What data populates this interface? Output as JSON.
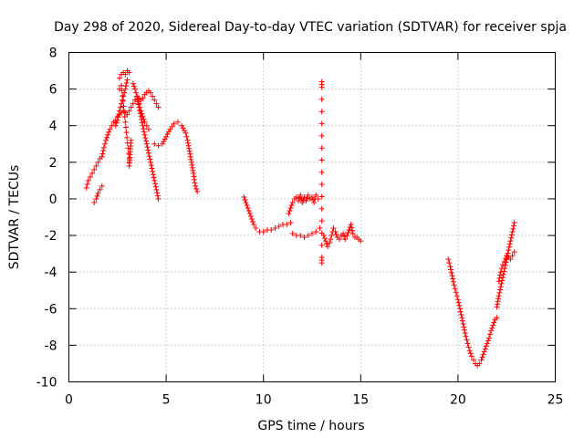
{
  "chart_data": {
    "type": "scatter",
    "title": "Day 298 of 2020, Sidereal Day-to-day VTEC variation (SDTVAR) for receiver spja",
    "xlabel": "GPS time / hours",
    "ylabel": "SDTVAR / TECUs",
    "xlim": [
      0,
      25
    ],
    "ylim": [
      -10,
      8
    ],
    "xticks": [
      0,
      5,
      10,
      15,
      20,
      25
    ],
    "yticks": [
      -10,
      -8,
      -6,
      -4,
      -2,
      0,
      2,
      4,
      6,
      8
    ],
    "grid": true,
    "marker": "plus",
    "color": "#ff0000",
    "series": [
      {
        "x": [
          0.9,
          1.0,
          1.1,
          1.2,
          1.3,
          1.4,
          1.5,
          1.6,
          1.7,
          1.8,
          1.9,
          2.0,
          2.1,
          2.2,
          2.3,
          2.4,
          2.5,
          2.6,
          2.7,
          2.8,
          2.9,
          3.0,
          3.1,
          3.2,
          3.3,
          3.4,
          3.5,
          3.6,
          3.7,
          3.8,
          3.9,
          4.0,
          4.1,
          4.2,
          4.3,
          4.4,
          4.5,
          4.6
        ],
        "y": [
          0.6,
          1.0,
          1.2,
          1.4,
          1.6,
          1.8,
          2.0,
          2.2,
          2.3,
          2.8,
          3.2,
          3.5,
          3.8,
          4.0,
          4.2,
          4.3,
          4.5,
          4.6,
          4.7,
          4.8,
          4.7,
          4.6,
          4.8,
          5.0,
          5.2,
          5.4,
          5.6,
          5.5,
          5.4,
          5.5,
          5.7,
          5.8,
          5.9,
          5.8,
          5.6,
          5.4,
          5.2,
          5.0
        ]
      },
      {
        "x": [
          1.3,
          1.4,
          1.5,
          1.6,
          1.7
        ],
        "y": [
          -0.2,
          0.0,
          0.3,
          0.5,
          0.7
        ]
      },
      {
        "x": [
          2.4,
          2.5,
          2.6,
          2.7,
          2.8,
          2.9,
          3.0
        ],
        "y": [
          4.0,
          4.3,
          4.8,
          5.2,
          5.6,
          6.0,
          6.5
        ]
      },
      {
        "x": [
          2.6,
          2.7,
          2.8,
          2.9,
          3.0,
          3.1
        ],
        "y": [
          6.6,
          6.8,
          6.9,
          6.8,
          7.0,
          6.9
        ]
      },
      {
        "x": [
          2.6,
          2.7,
          3.1,
          3.1,
          3.2
        ],
        "y": [
          6.0,
          6.2,
          2.2,
          1.8,
          3.2
        ]
      },
      {
        "x": [
          3.3,
          3.4,
          3.5,
          3.6,
          3.7,
          3.8,
          3.9,
          4.0,
          4.1,
          4.2,
          4.3,
          4.4,
          4.5,
          4.6
        ],
        "y": [
          6.3,
          6.0,
          5.6,
          5.0,
          4.5,
          4.0,
          3.5,
          3.0,
          2.5,
          2.0,
          1.5,
          1.0,
          0.5,
          0.0
        ]
      },
      {
        "x": [
          3.5,
          3.6,
          3.7,
          3.8,
          3.9,
          4.0,
          4.1
        ],
        "y": [
          5.6,
          5.2,
          4.8,
          4.5,
          4.2,
          4.0,
          3.8
        ]
      },
      {
        "x": [
          4.4,
          4.6,
          4.8,
          5.0,
          5.2,
          5.4,
          5.6,
          5.8,
          6.0,
          6.1,
          6.2,
          6.3,
          6.4,
          6.5,
          6.6
        ],
        "y": [
          3.0,
          2.9,
          3.0,
          3.4,
          3.8,
          4.1,
          4.2,
          4.0,
          3.6,
          3.2,
          2.6,
          2.0,
          1.4,
          0.7,
          0.4
        ]
      },
      {
        "x": [
          9.0,
          9.1,
          9.2,
          9.3,
          9.4,
          9.5,
          9.6,
          9.8,
          10.0,
          10.2,
          10.4,
          10.6,
          10.8,
          11.0,
          11.2,
          11.4
        ],
        "y": [
          0.1,
          -0.2,
          -0.5,
          -0.8,
          -1.1,
          -1.4,
          -1.6,
          -1.8,
          -1.8,
          -1.7,
          -1.7,
          -1.6,
          -1.5,
          -1.4,
          -1.4,
          -1.3
        ]
      },
      {
        "x": [
          11.3,
          11.4,
          11.5,
          11.6,
          11.7,
          11.8,
          11.9,
          12.0,
          12.1,
          12.2,
          12.3,
          12.4,
          12.5,
          12.6,
          12.7,
          12.8
        ],
        "y": [
          -0.8,
          -0.5,
          -0.2,
          0.0,
          0.1,
          -0.1,
          0.2,
          -0.2,
          0.1,
          -0.1,
          0.2,
          0.0,
          0.1,
          -0.2,
          0.2,
          0.0
        ]
      },
      {
        "x": [
          11.5,
          11.7,
          11.9,
          12.1,
          12.3,
          12.5,
          12.7,
          12.9
        ],
        "y": [
          -1.9,
          -2.0,
          -2.0,
          -2.1,
          -2.0,
          -1.9,
          -1.8,
          -1.6
        ]
      },
      {
        "x": [
          13.0,
          13.0,
          13.0,
          13.0
        ],
        "y": [
          6.4,
          6.1,
          -3.2,
          -3.5
        ]
      },
      {
        "x": [
          13.1,
          13.2,
          13.3,
          13.4,
          13.5,
          13.6,
          13.7,
          13.8,
          13.9,
          14.0,
          14.1,
          14.2,
          14.3,
          14.4,
          14.5,
          14.6,
          14.7,
          14.8,
          14.9,
          15.0
        ],
        "y": [
          -2.0,
          -2.3,
          -2.6,
          -2.4,
          -2.0,
          -1.6,
          -1.8,
          -2.1,
          -2.2,
          -2.0,
          -1.9,
          -2.2,
          -2.0,
          -1.7,
          -1.4,
          -1.9,
          -2.1,
          -2.1,
          -2.2,
          -2.3
        ]
      },
      {
        "x": [
          19.5,
          19.6,
          19.7,
          19.8,
          19.9,
          20.0,
          20.1,
          20.2,
          20.3,
          20.4,
          20.5,
          20.6,
          20.7,
          20.8,
          20.9,
          21.0,
          21.1,
          21.2,
          21.3,
          21.4,
          21.5,
          21.6,
          21.7,
          21.8,
          21.9,
          22.0
        ],
        "y": [
          -3.3,
          -3.7,
          -4.2,
          -4.7,
          -5.1,
          -5.5,
          -6.0,
          -6.5,
          -7.0,
          -7.5,
          -7.9,
          -8.3,
          -8.6,
          -8.8,
          -9.0,
          -9.1,
          -9.0,
          -8.8,
          -8.5,
          -8.2,
          -7.9,
          -7.6,
          -7.2,
          -6.9,
          -6.6,
          -6.5
        ]
      },
      {
        "x": [
          22.0,
          22.1,
          22.2,
          22.3,
          22.4,
          22.5,
          22.6,
          22.7,
          22.8,
          22.9
        ],
        "y": [
          -5.9,
          -5.3,
          -4.8,
          -4.3,
          -3.8,
          -3.3,
          -2.8,
          -2.3,
          -1.8,
          -1.3
        ]
      },
      {
        "x": [
          22.1,
          22.2,
          22.3,
          22.4,
          22.5,
          22.6,
          22.7,
          22.8,
          22.9
        ],
        "y": [
          -4.5,
          -4.0,
          -3.6,
          -3.4,
          -3.1,
          -3.2,
          -3.3,
          -3.1,
          -2.9
        ]
      }
    ]
  }
}
